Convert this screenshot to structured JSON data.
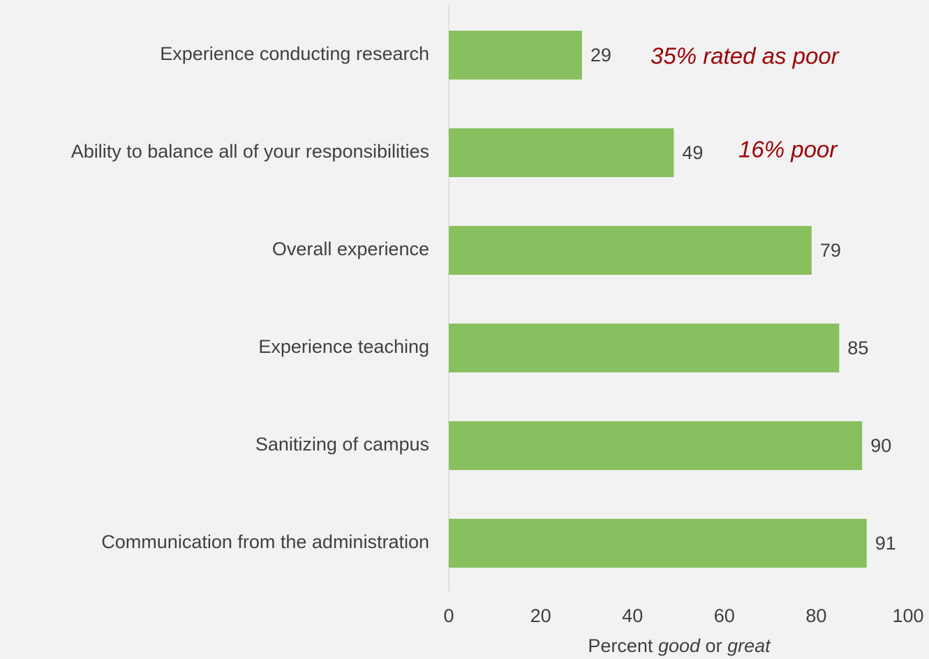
{
  "chart_data": {
    "type": "barh",
    "categories": [
      "Experience conducting research",
      "Ability to balance all of your responsibilities",
      "Overall experience",
      "Experience teaching",
      "Sanitizing of campus",
      "Communication from the administration"
    ],
    "values": [
      29,
      49,
      79,
      85,
      90,
      91
    ],
    "color": "#88bf5f",
    "xlim": [
      0,
      100
    ],
    "xticks": [
      0,
      20,
      40,
      60,
      80,
      100
    ],
    "xlabel": [
      {
        "text": "Percent",
        "italic": false
      },
      {
        "text": "good",
        "italic": true
      },
      {
        "text": "or",
        "italic": false
      },
      {
        "text": "great",
        "italic": true
      }
    ],
    "annotations": [
      "35% rated as poor",
      "16% poor"
    ],
    "annotation_color": "#9c0006"
  }
}
